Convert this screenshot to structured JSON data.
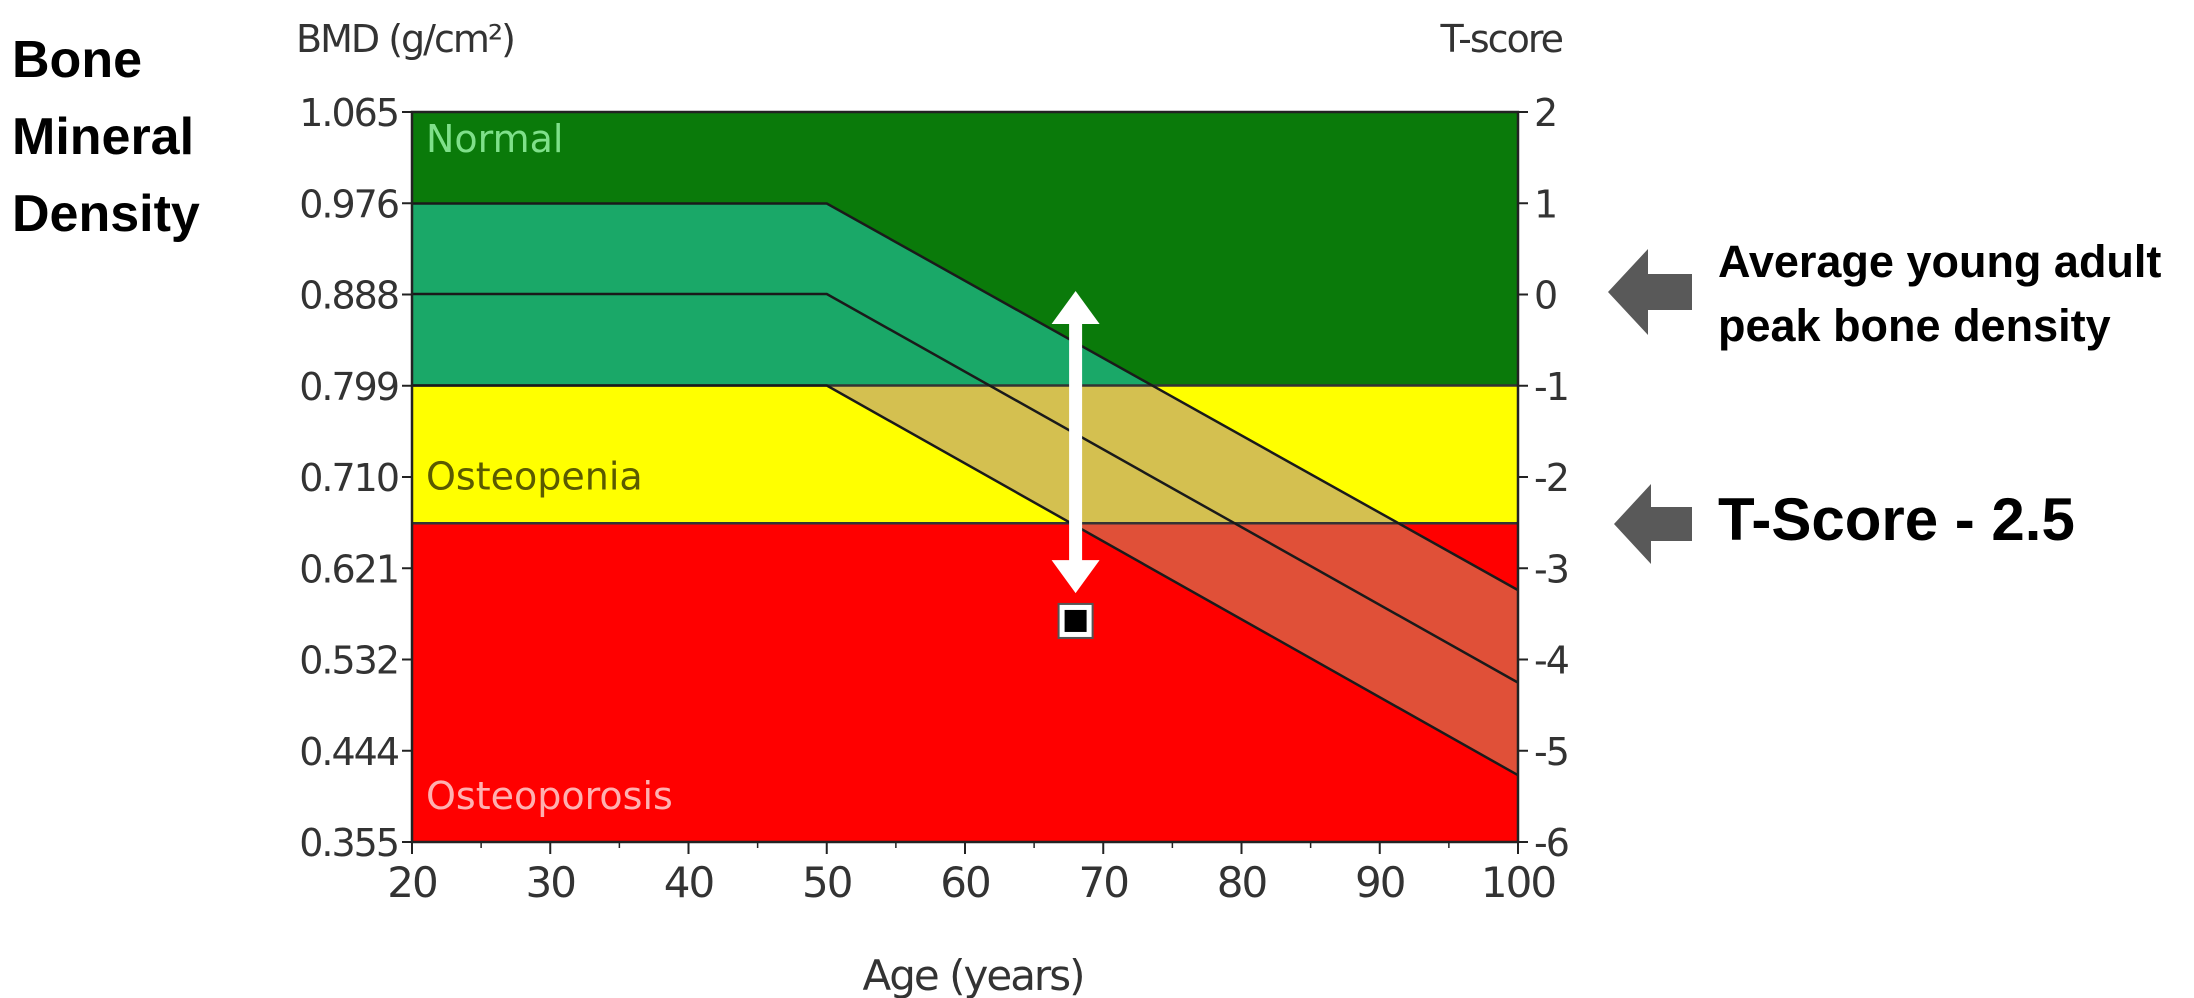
{
  "side_title": [
    "Bone",
    "Mineral",
    "Density"
  ],
  "annotations": {
    "peak": [
      "Average young adult",
      "peak bone density"
    ],
    "tscore": "T-Score - 2.5"
  },
  "chart_data": {
    "type": "line",
    "xlabel": "Age (years)",
    "ylabel_left": "BMD (g/cm²)",
    "ylabel_right": "T-score",
    "xlim": [
      20,
      100
    ],
    "ylim": [
      0.355,
      1.065
    ],
    "x_ticks": [
      20,
      30,
      40,
      50,
      60,
      70,
      80,
      90,
      100
    ],
    "y_ticks_left": [
      "1.065",
      "0.976",
      "0.888",
      "0.799",
      "0.710",
      "0.621",
      "0.532",
      "0.444",
      "0.355"
    ],
    "y_ticks_right": [
      "2",
      "1",
      "0",
      "-1",
      "-2",
      "-3",
      "-4",
      "-5",
      "-6"
    ],
    "zones": [
      {
        "name": "Normal",
        "from": 0.799,
        "to": 1.065,
        "color": "#0a7a0a",
        "label_color": "#7fe08a"
      },
      {
        "name": "Osteopenia",
        "from": 0.665,
        "to": 0.799,
        "color": "#ffff00",
        "label_color": "#5a5a00"
      },
      {
        "name": "Osteoporosis",
        "from": 0.355,
        "to": 0.665,
        "color": "#ff0000",
        "label_color": "#ffb0b0"
      }
    ],
    "reference_band": {
      "upper": [
        [
          20,
          0.976
        ],
        [
          50,
          0.976
        ],
        [
          100,
          0.6
        ]
      ],
      "middle": [
        [
          20,
          0.888
        ],
        [
          50,
          0.888
        ],
        [
          100,
          0.51
        ]
      ],
      "lower": [
        [
          20,
          0.799
        ],
        [
          50,
          0.799
        ],
        [
          100,
          0.42
        ]
      ],
      "fills": {
        "Normal": "#1aa868",
        "Osteopenia": "#d4c050",
        "Osteoporosis": "#e05038"
      }
    },
    "patient_point": {
      "x": 68,
      "y": 0.57
    },
    "arrow": {
      "x": 68,
      "from": 0.888,
      "to": 0.6
    }
  }
}
